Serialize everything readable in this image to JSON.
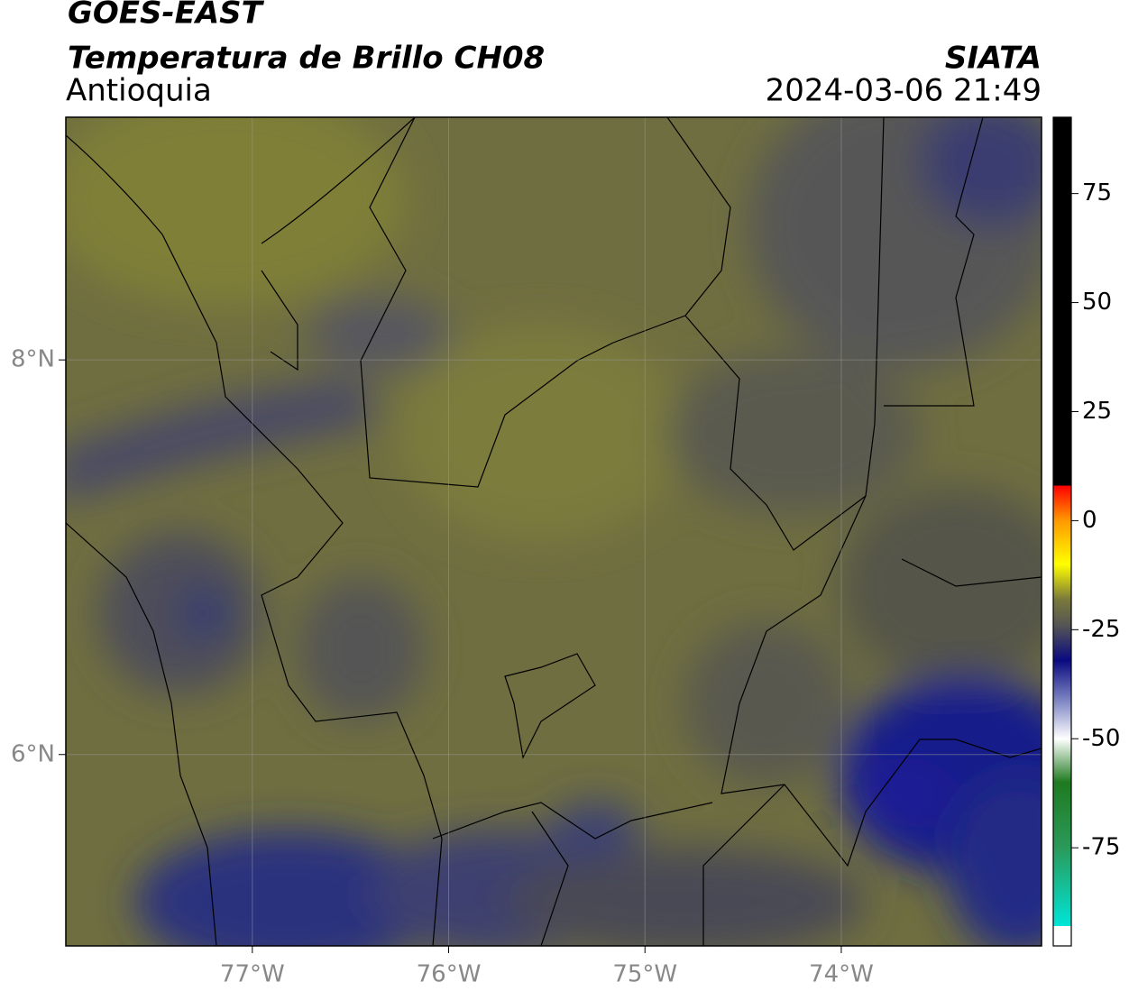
{
  "header": {
    "title": "GOES-EAST",
    "subtitle": "Temperatura de Brillo CH08",
    "region": "Antioquia",
    "source": "SIATA",
    "datetime": "2024-03-06 21:49"
  },
  "map": {
    "lonlim": [
      -77.95,
      -72.98
    ],
    "latlim": [
      5.03,
      9.23
    ],
    "grid": true,
    "lon_ticks": [
      {
        "value": -77,
        "label": "77°W"
      },
      {
        "value": -76,
        "label": "76°W"
      },
      {
        "value": -75,
        "label": "75°W"
      },
      {
        "value": -74,
        "label": "74°W"
      }
    ],
    "lat_ticks": [
      {
        "value": 8,
        "label": "8°N"
      },
      {
        "value": 6,
        "label": "6°N"
      }
    ]
  },
  "colorbar": {
    "lim": [
      -97.5,
      92.5
    ],
    "ticks": [
      75,
      50,
      25,
      0,
      -25,
      -50,
      -75
    ],
    "colors": [
      {
        "value": -97.5,
        "color": "#ffffff"
      },
      {
        "value": -93,
        "color": "#ffffff"
      },
      {
        "value": -93,
        "color": "#00e5d8"
      },
      {
        "value": -75,
        "color": "#2a9a5a"
      },
      {
        "value": -60,
        "color": "#1f7a1f"
      },
      {
        "value": -50,
        "color": "#ffffff"
      },
      {
        "value": -42,
        "color": "#8890c8"
      },
      {
        "value": -32,
        "color": "#0a0a80"
      },
      {
        "value": -24,
        "color": "#555555"
      },
      {
        "value": -18,
        "color": "#7a7a3a"
      },
      {
        "value": -10,
        "color": "#ffff00"
      },
      {
        "value": 0,
        "color": "#ff9900"
      },
      {
        "value": 8,
        "color": "#ff0000"
      },
      {
        "value": 8,
        "color": "#000000"
      },
      {
        "value": 92.5,
        "color": "#000000"
      }
    ]
  }
}
